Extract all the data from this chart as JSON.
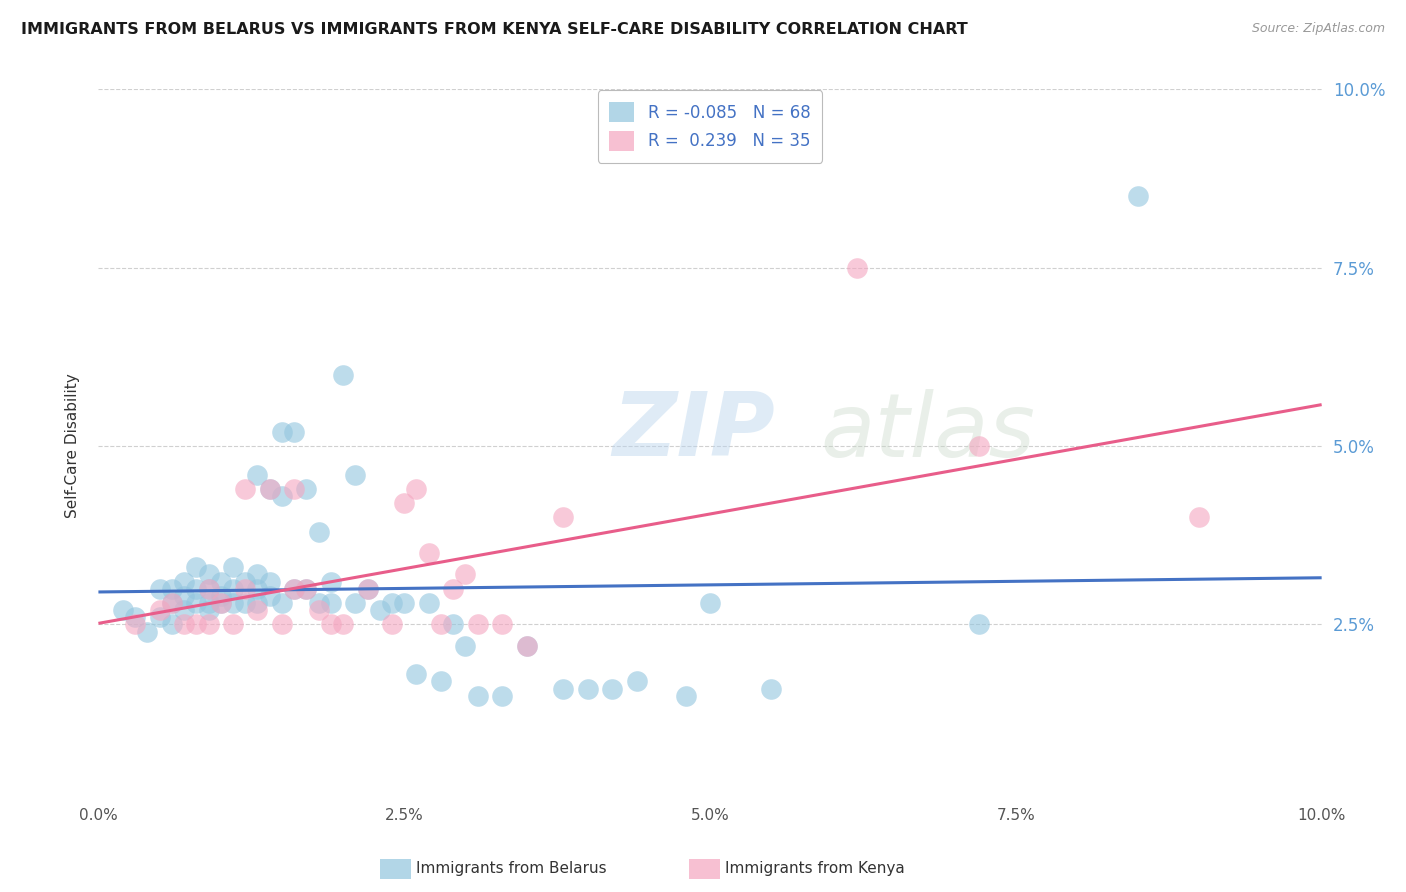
{
  "title": "IMMIGRANTS FROM BELARUS VS IMMIGRANTS FROM KENYA SELF-CARE DISABILITY CORRELATION CHART",
  "source": "Source: ZipAtlas.com",
  "ylabel": "Self-Care Disability",
  "xlim": [
    0.0,
    0.1
  ],
  "ylim": [
    0.0,
    0.1
  ],
  "grid_color": "#d0d0d0",
  "background_color": "#ffffff",
  "watermark_line1": "ZIP",
  "watermark_line2": "atlas",
  "color_belarus": "#92c5de",
  "color_kenya": "#f4a6c0",
  "trendline_color_belarus": "#4472c4",
  "trendline_color_kenya": "#e85d8a",
  "belarus_x": [
    0.002,
    0.003,
    0.004,
    0.005,
    0.005,
    0.006,
    0.006,
    0.006,
    0.007,
    0.007,
    0.007,
    0.008,
    0.008,
    0.008,
    0.009,
    0.009,
    0.009,
    0.009,
    0.01,
    0.01,
    0.01,
    0.011,
    0.011,
    0.011,
    0.012,
    0.012,
    0.013,
    0.013,
    0.013,
    0.013,
    0.014,
    0.014,
    0.014,
    0.015,
    0.015,
    0.015,
    0.016,
    0.016,
    0.017,
    0.017,
    0.018,
    0.018,
    0.019,
    0.019,
    0.02,
    0.021,
    0.021,
    0.022,
    0.023,
    0.024,
    0.025,
    0.026,
    0.027,
    0.028,
    0.029,
    0.03,
    0.031,
    0.033,
    0.035,
    0.038,
    0.04,
    0.042,
    0.044,
    0.048,
    0.05,
    0.055,
    0.072,
    0.085
  ],
  "belarus_y": [
    0.027,
    0.026,
    0.024,
    0.03,
    0.026,
    0.028,
    0.03,
    0.025,
    0.029,
    0.031,
    0.027,
    0.03,
    0.028,
    0.033,
    0.027,
    0.03,
    0.032,
    0.028,
    0.028,
    0.031,
    0.029,
    0.03,
    0.033,
    0.028,
    0.031,
    0.028,
    0.03,
    0.032,
    0.028,
    0.046,
    0.029,
    0.031,
    0.044,
    0.028,
    0.043,
    0.052,
    0.052,
    0.03,
    0.03,
    0.044,
    0.028,
    0.038,
    0.028,
    0.031,
    0.06,
    0.028,
    0.046,
    0.03,
    0.027,
    0.028,
    0.028,
    0.018,
    0.028,
    0.017,
    0.025,
    0.022,
    0.015,
    0.015,
    0.022,
    0.016,
    0.016,
    0.016,
    0.017,
    0.015,
    0.028,
    0.016,
    0.025,
    0.085
  ],
  "kenya_x": [
    0.003,
    0.005,
    0.006,
    0.007,
    0.008,
    0.009,
    0.009,
    0.01,
    0.011,
    0.012,
    0.012,
    0.013,
    0.014,
    0.015,
    0.016,
    0.016,
    0.017,
    0.018,
    0.019,
    0.02,
    0.022,
    0.024,
    0.025,
    0.026,
    0.027,
    0.028,
    0.029,
    0.03,
    0.031,
    0.033,
    0.035,
    0.038,
    0.062,
    0.072,
    0.09
  ],
  "kenya_y": [
    0.025,
    0.027,
    0.028,
    0.025,
    0.025,
    0.03,
    0.025,
    0.028,
    0.025,
    0.03,
    0.044,
    0.027,
    0.044,
    0.025,
    0.03,
    0.044,
    0.03,
    0.027,
    0.025,
    0.025,
    0.03,
    0.025,
    0.042,
    0.044,
    0.035,
    0.025,
    0.03,
    0.032,
    0.025,
    0.025,
    0.022,
    0.04,
    0.075,
    0.05,
    0.04
  ],
  "legend_label1": "R = -0.085   N = 68",
  "legend_label2": "R =  0.239   N = 35",
  "bottom_label1": "Immigrants from Belarus",
  "bottom_label2": "Immigrants from Kenya"
}
